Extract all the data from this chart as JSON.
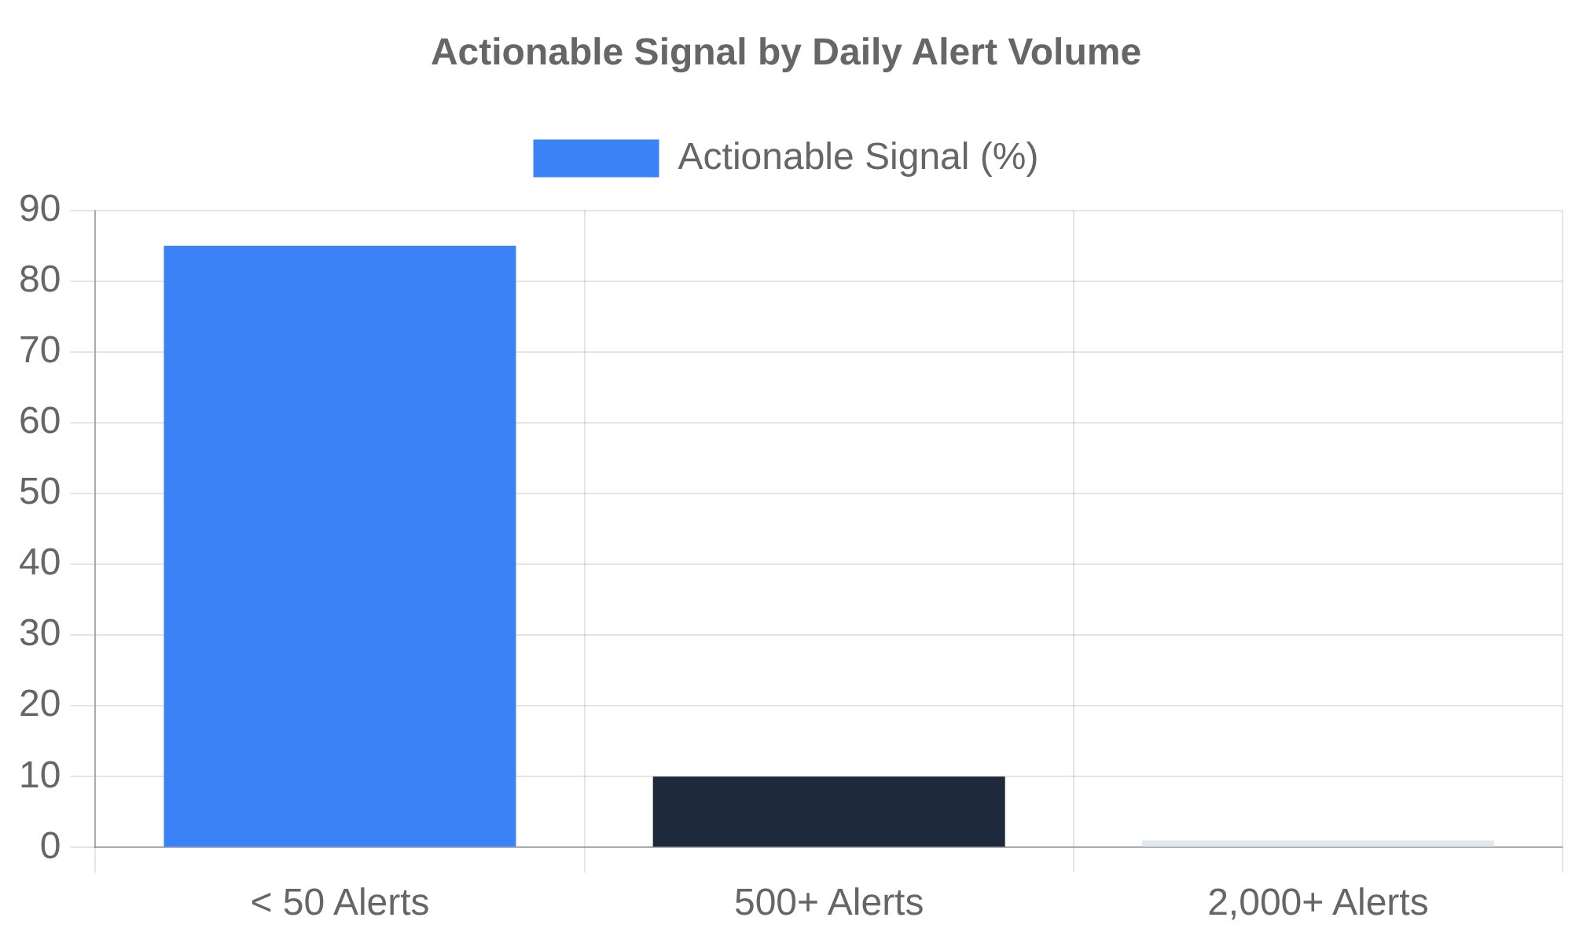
{
  "chart_data": {
    "type": "bar",
    "title": "Actionable Signal by Daily Alert Volume",
    "categories": [
      "< 50 Alerts",
      "500+ Alerts",
      "2,000+ Alerts"
    ],
    "series": [
      {
        "name": "Actionable Signal (%)",
        "colors": [
          "#3b82f6",
          "#1e293b",
          "#e2e8f0"
        ],
        "values": [
          85,
          10,
          1
        ]
      }
    ],
    "ylim": [
      0,
      90
    ],
    "yticks": [
      0,
      10,
      20,
      30,
      40,
      50,
      60,
      70,
      80,
      90
    ],
    "grid": true,
    "legend": "top"
  }
}
